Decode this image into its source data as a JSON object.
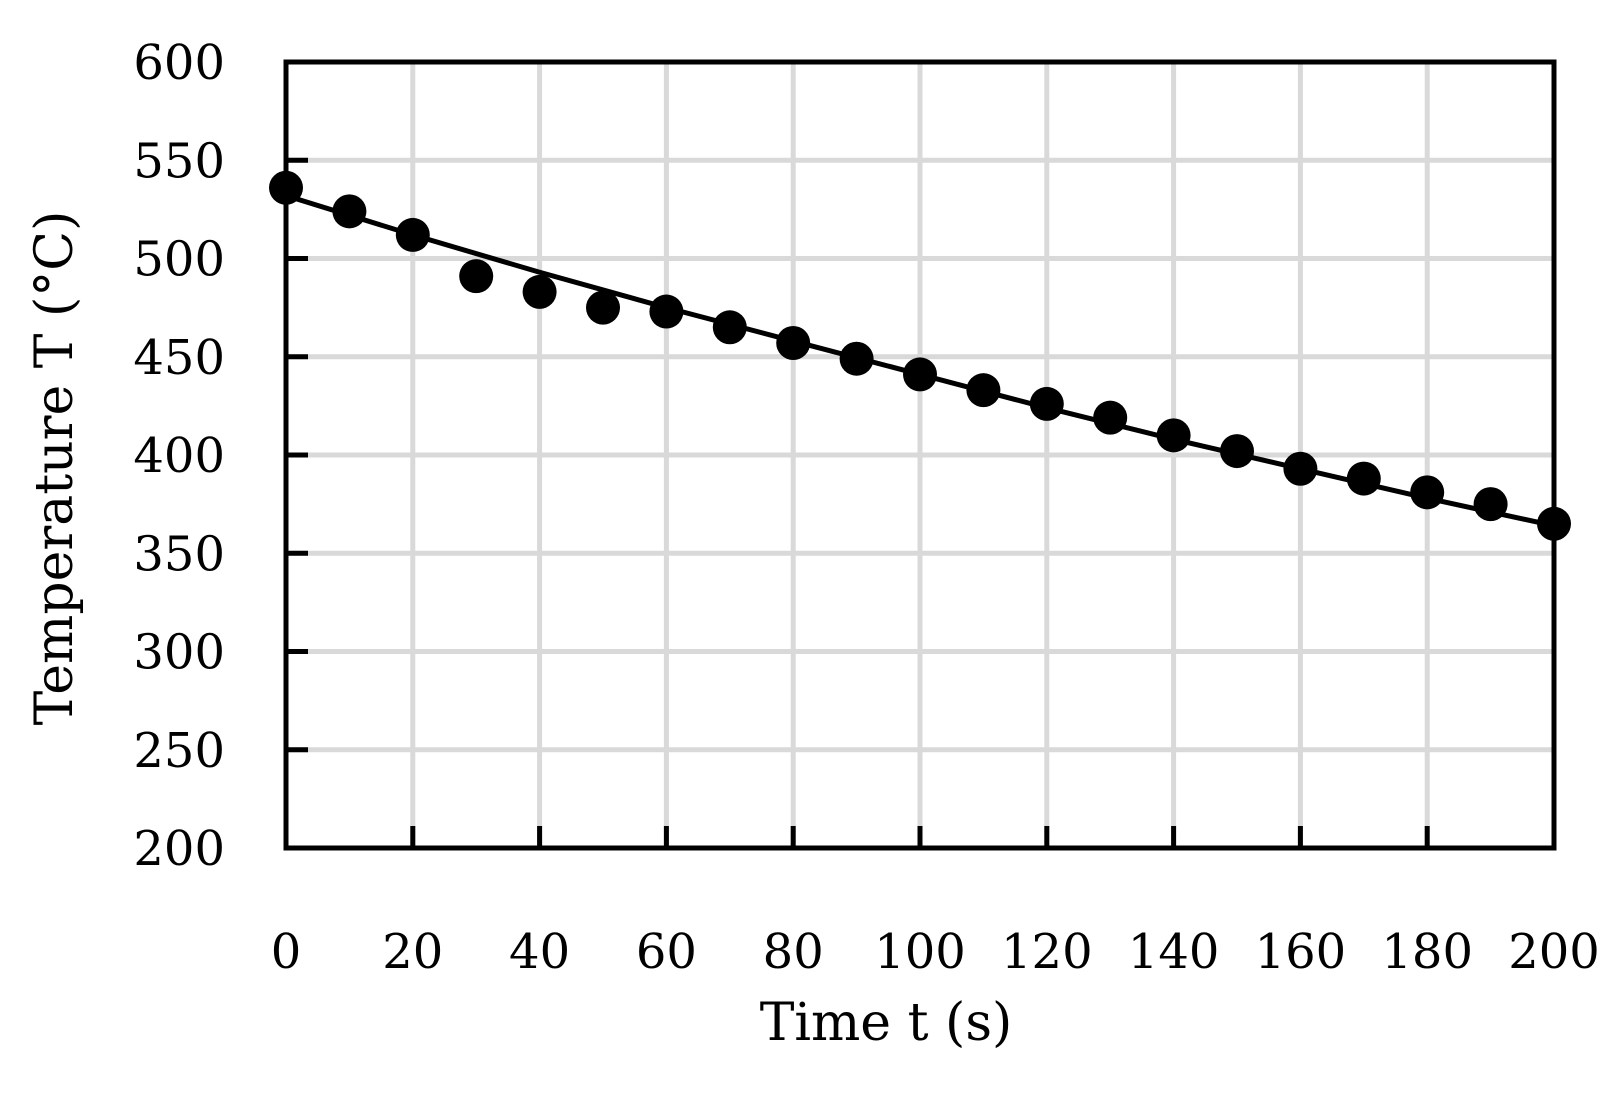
{
  "chart_data": {
    "type": "scatter",
    "xlabel": "Time t (s)",
    "ylabel": "Temperature T (°C)",
    "xlim": [
      0,
      200
    ],
    "ylim": [
      200,
      600
    ],
    "xticks": [
      0,
      20,
      40,
      60,
      80,
      100,
      120,
      140,
      160,
      180,
      200
    ],
    "yticks": [
      200,
      250,
      300,
      350,
      400,
      450,
      500,
      550,
      600
    ],
    "xtick_labels": [
      "0",
      "20",
      "40",
      "60",
      "80",
      "100",
      "120",
      "140",
      "160",
      "180",
      "200"
    ],
    "ytick_labels": [
      "200",
      "250",
      "300",
      "350",
      "400",
      "450",
      "500",
      "550",
      "600"
    ],
    "grid": true,
    "series": [
      {
        "kind": "scatter",
        "marker": "circle",
        "color": "#000000",
        "x": [
          0,
          10,
          20,
          30,
          40,
          50,
          60,
          70,
          80,
          90,
          100,
          110,
          120,
          130,
          140,
          150,
          160,
          170,
          180,
          190,
          200
        ],
        "y": [
          536,
          524,
          512,
          491,
          483,
          475,
          473,
          465,
          457,
          449,
          441,
          433,
          426,
          419,
          410,
          402,
          393,
          388,
          381,
          375,
          365
        ]
      },
      {
        "kind": "line",
        "color": "#000000",
        "x": [
          0,
          20,
          40,
          60,
          80,
          100,
          120,
          140,
          160,
          180,
          200
        ],
        "y": [
          532,
          512,
          493,
          475,
          458,
          441,
          424,
          408,
          393,
          378,
          364
        ]
      }
    ],
    "colors": {
      "grid": "#d9d9d9",
      "axis": "#000000",
      "marker": "#000000",
      "line": "#000000"
    }
  }
}
